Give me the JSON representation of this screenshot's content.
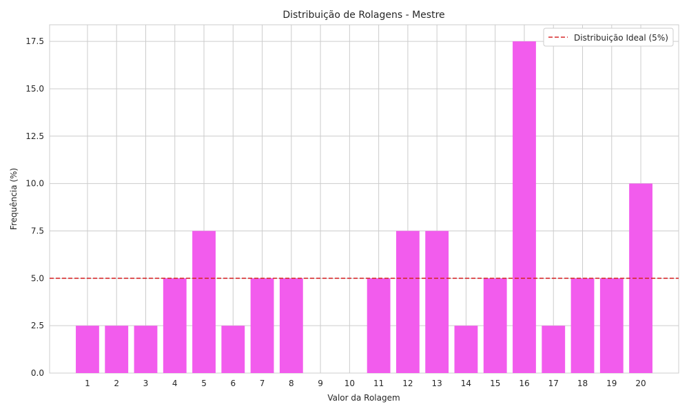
{
  "chart_data": {
    "type": "bar",
    "title": "Distribuição de Rolagens - Mestre",
    "xlabel": "Valor da Rolagem",
    "ylabel": "Frequência (%)",
    "categories": [
      "1",
      "2",
      "3",
      "4",
      "5",
      "6",
      "7",
      "8",
      "9",
      "10",
      "11",
      "12",
      "13",
      "14",
      "15",
      "16",
      "17",
      "18",
      "19",
      "20"
    ],
    "values": [
      2.5,
      2.5,
      2.5,
      5.0,
      7.5,
      2.5,
      5.0,
      5.0,
      0.0,
      0.0,
      5.0,
      7.5,
      7.5,
      2.5,
      5.0,
      17.5,
      2.5,
      5.0,
      5.0,
      10.0
    ],
    "ylim": [
      0,
      18.375
    ],
    "yticks": [
      "0.0",
      "2.5",
      "5.0",
      "7.5",
      "10.0",
      "12.5",
      "15.0",
      "17.5"
    ],
    "reference_line": {
      "y": 5.0,
      "label": "Distribuição Ideal (5%)",
      "style": "dashed",
      "color": "#d62728"
    },
    "bar_color": "#f25ced",
    "grid": true,
    "legend": {
      "position": "top-right"
    }
  }
}
